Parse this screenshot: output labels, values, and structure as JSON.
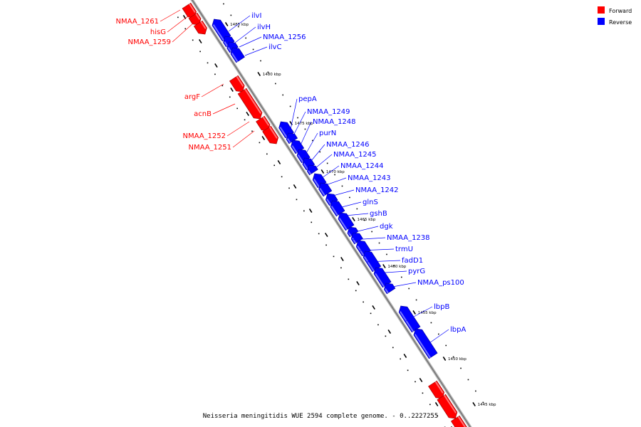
{
  "colors": {
    "forward": "#ff0000",
    "reverse": "#0000ff",
    "axis": "#999999",
    "tick": "#000000"
  },
  "legend": [
    {
      "label": "Forward",
      "color": "#ff0000"
    },
    {
      "label": "Reverse",
      "color": "#0000ff"
    }
  ],
  "footer": "Neisseria meningitidis WUE 2594 complete genome. - 0..2227255",
  "axis_ticks": [
    "1485 kbp",
    "1480 kbp",
    "1475 kbp",
    "1470 kbp",
    "1465 kbp",
    "1460 kbp",
    "1455 kbp",
    "1450 kbp",
    "1445 kbp"
  ],
  "forward_genes": [
    "NMAA_1261",
    "hisG",
    "NMAA_1259",
    "argF",
    "acnB",
    "NMAA_1252",
    "NMAA_1251"
  ],
  "reverse_genes": [
    "ilvI",
    "ilvH",
    "NMAA_1256",
    "ilvC",
    "pepA",
    "NMAA_1249",
    "NMAA_1248",
    "purN",
    "NMAA_1246",
    "NMAA_1245",
    "NMAA_1244",
    "NMAA_1243",
    "NMAA_1242",
    "glnS",
    "gshB",
    "dgk",
    "NMAA_1238",
    "trmU",
    "fadD1",
    "pyrG",
    "NMAA_ps100",
    "lbpB",
    "lbpA"
  ]
}
